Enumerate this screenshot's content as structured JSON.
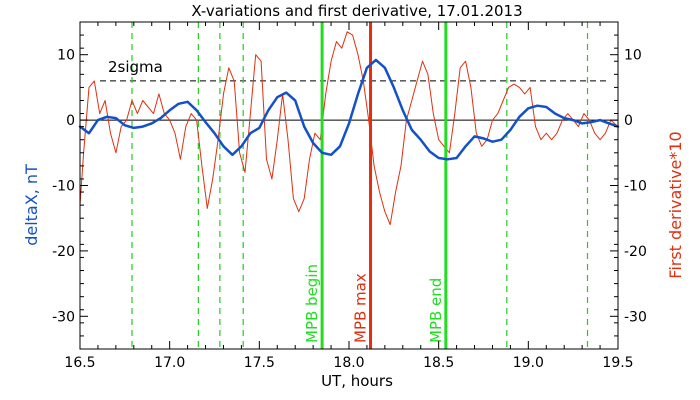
{
  "chart_data": {
    "type": "line",
    "title": "X-variations and first derivative, 17.01.2013",
    "xlabel": "UT, hours",
    "ylabel_left": "deltaX, nT",
    "ylabel_right": "First derivative*10",
    "xlim": [
      16.5,
      19.5
    ],
    "ylim": [
      -35,
      15
    ],
    "x_ticks": [
      "16.5",
      "17.0",
      "17.5",
      "18.0",
      "18.5",
      "19.0",
      "19.5"
    ],
    "y_ticks_left": [
      "10",
      "0",
      "-10",
      "-20",
      "-30"
    ],
    "y_ticks_right": [
      "10",
      "0",
      "-10",
      "-20",
      "-30"
    ],
    "sigma_label": "2sigma",
    "sigma_level": 6,
    "colors": {
      "deltaX": "#1450c8",
      "derivative": "#e03010",
      "mpb_green": "#22dd22",
      "mpb_red": "#e03010",
      "dashed_green": "#22cc22",
      "axes": "#000000"
    },
    "green_dashed_x": [
      16.79,
      17.16,
      17.28,
      17.41,
      18.88,
      19.33
    ],
    "markers": [
      {
        "x": 17.85,
        "label": "MPB begin",
        "color": "#22dd22"
      },
      {
        "x": 18.12,
        "label": "MPB max",
        "color": "#e03010"
      },
      {
        "x": 18.54,
        "label": "MPB end",
        "color": "#22dd22"
      }
    ],
    "series": [
      {
        "name": "deltaX",
        "color": "#1450c8",
        "x": [
          16.5,
          16.55,
          16.6,
          16.65,
          16.7,
          16.75,
          16.8,
          16.85,
          16.9,
          16.95,
          17.0,
          17.05,
          17.1,
          17.15,
          17.2,
          17.25,
          17.3,
          17.35,
          17.4,
          17.45,
          17.5,
          17.55,
          17.6,
          17.65,
          17.7,
          17.75,
          17.8,
          17.85,
          17.9,
          17.95,
          18.0,
          18.05,
          18.1,
          18.15,
          18.2,
          18.25,
          18.3,
          18.35,
          18.4,
          18.45,
          18.5,
          18.55,
          18.6,
          18.65,
          18.7,
          18.75,
          18.8,
          18.85,
          18.9,
          18.95,
          19.0,
          19.05,
          19.1,
          19.15,
          19.2,
          19.25,
          19.3,
          19.35,
          19.4,
          19.45,
          19.5
        ],
        "y": [
          -1,
          -2,
          0,
          0.5,
          0.3,
          -0.8,
          -1.2,
          -1,
          -0.5,
          0.3,
          1.5,
          2.5,
          2.8,
          1.5,
          -0.3,
          -2,
          -4,
          -5.3,
          -4,
          -2,
          -1.2,
          1.5,
          3.5,
          4.2,
          3,
          -1,
          -3.5,
          -5,
          -5.3,
          -4,
          -0.5,
          4,
          8,
          9.2,
          8,
          5,
          1.5,
          -1.5,
          -3,
          -4.8,
          -5.8,
          -6,
          -5.8,
          -4,
          -2.5,
          -2.8,
          -3.3,
          -3,
          -1.5,
          0.5,
          1.8,
          2.2,
          2,
          1,
          0.3,
          0,
          -0.5,
          -0.3,
          0,
          -0.5,
          -1
        ]
      },
      {
        "name": "derivative",
        "color": "#e03010",
        "x": [
          16.5,
          16.52,
          16.55,
          16.58,
          16.61,
          16.64,
          16.67,
          16.7,
          16.73,
          16.76,
          16.79,
          16.82,
          16.85,
          16.88,
          16.91,
          16.94,
          16.97,
          17.0,
          17.03,
          17.06,
          17.09,
          17.12,
          17.15,
          17.18,
          17.21,
          17.24,
          17.27,
          17.3,
          17.33,
          17.36,
          17.39,
          17.42,
          17.45,
          17.48,
          17.51,
          17.54,
          17.57,
          17.6,
          17.63,
          17.66,
          17.69,
          17.72,
          17.75,
          17.78,
          17.81,
          17.84,
          17.87,
          17.9,
          17.93,
          17.96,
          17.99,
          18.02,
          18.05,
          18.08,
          18.11,
          18.14,
          18.17,
          18.2,
          18.23,
          18.26,
          18.29,
          18.32,
          18.35,
          18.38,
          18.41,
          18.44,
          18.47,
          18.5,
          18.53,
          18.56,
          18.59,
          18.62,
          18.65,
          18.68,
          18.71,
          18.74,
          18.77,
          18.8,
          18.83,
          18.86,
          18.89,
          18.92,
          18.95,
          18.98,
          19.01,
          19.04,
          19.07,
          19.1,
          19.13,
          19.16,
          19.19,
          19.22,
          19.25,
          19.28,
          19.31,
          19.34,
          19.37,
          19.4,
          19.43,
          19.46,
          19.5
        ],
        "y": [
          -13,
          -5,
          5,
          6,
          1,
          3,
          -2,
          -5,
          -1,
          0,
          3,
          1,
          3,
          2,
          1,
          4,
          1,
          0,
          -2,
          -6,
          -1,
          1,
          0,
          -7,
          -13.5,
          -9,
          -3,
          4,
          8,
          6,
          -5,
          -8,
          1,
          10,
          9,
          -6,
          -9,
          -3,
          4,
          -3,
          -12,
          -14,
          -12,
          -6,
          -2,
          -3,
          4,
          9,
          12,
          11,
          13.5,
          13,
          10,
          6,
          0,
          -7,
          -11,
          -14,
          -16,
          -11,
          -7,
          0,
          3,
          6,
          9,
          7,
          1,
          -3,
          -4,
          -5,
          1,
          8,
          9,
          5,
          -2,
          -4,
          -3,
          0,
          1,
          3,
          5,
          5.5,
          5,
          4,
          5,
          -1,
          -3,
          -2,
          -3,
          -2,
          0,
          1,
          0,
          -1,
          1,
          0,
          -2,
          -3,
          -2,
          0,
          -1
        ]
      }
    ]
  }
}
